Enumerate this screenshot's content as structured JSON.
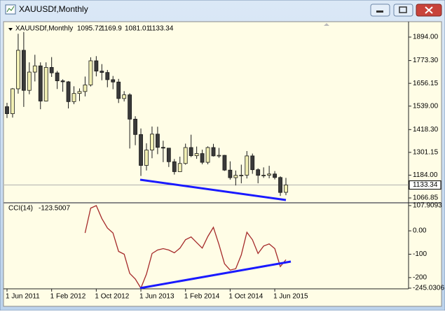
{
  "window": {
    "title": "XAUUSDf,Monthly"
  },
  "chart_data": [
    {
      "type": "candlestick",
      "title": "XAUUSDf,Monthly",
      "categories": [
        "1 Jun 2011",
        null,
        null,
        null,
        null,
        null,
        null,
        null,
        "1 Feb 2012",
        null,
        null,
        null,
        null,
        null,
        null,
        null,
        "1 Oct 2012",
        null,
        null,
        null,
        null,
        null,
        null,
        null,
        "1 Jun 2013",
        null,
        null,
        null,
        null,
        null,
        null,
        null,
        "1 Feb 2014",
        null,
        null,
        null,
        null,
        null,
        null,
        null,
        "1 Oct 2014",
        null,
        null,
        null,
        null,
        null,
        null,
        null,
        "1 Jun 2015",
        null,
        null
      ],
      "open": [
        1536,
        1500,
        1628,
        1826,
        1620,
        1714,
        1746,
        1565,
        1738,
        1710,
        1669,
        1664,
        1562,
        1604,
        1614,
        1648,
        1772,
        1719,
        1712,
        1675,
        1663,
        1578,
        1597,
        1472,
        1393,
        1234,
        1313,
        1395,
        1327,
        1323,
        1253,
        1202,
        1244,
        1326,
        1284,
        1295,
        1250,
        1326,
        1283,
        1286,
        1210,
        1171,
        1183,
        1184,
        1283,
        1212,
        1183,
        1184,
        1190,
        1172,
        1095.72
      ],
      "high": [
        1556,
        1632,
        1911,
        1920,
        1764,
        1803,
        1764,
        1764,
        1791,
        1720,
        1677,
        1668,
        1641,
        1630,
        1691,
        1790,
        1796,
        1755,
        1725,
        1694,
        1679,
        1616,
        1605,
        1487,
        1424,
        1348,
        1434,
        1433,
        1361,
        1321,
        1267,
        1279,
        1346,
        1392,
        1331,
        1315,
        1332,
        1345,
        1324,
        1288,
        1255,
        1208,
        1238,
        1308,
        1295,
        1219,
        1224,
        1232,
        1205,
        1178,
        1169.9
      ],
      "low": [
        1478,
        1480,
        1603,
        1535,
        1600,
        1666,
        1523,
        1563,
        1689,
        1627,
        1613,
        1527,
        1549,
        1565,
        1589,
        1640,
        1692,
        1672,
        1636,
        1626,
        1555,
        1563,
        1321,
        1338,
        1180,
        1208,
        1271,
        1292,
        1251,
        1226,
        1187,
        1202,
        1238,
        1277,
        1268,
        1240,
        1240,
        1280,
        1273,
        1206,
        1161,
        1131,
        1142,
        1167,
        1191,
        1142,
        1170,
        1168,
        1162,
        1077,
        1081.01
      ],
      "close": [
        1500,
        1628,
        1826,
        1620,
        1714,
        1746,
        1565,
        1738,
        1710,
        1669,
        1664,
        1562,
        1604,
        1614,
        1648,
        1772,
        1719,
        1712,
        1675,
        1663,
        1578,
        1597,
        1472,
        1393,
        1234,
        1313,
        1395,
        1327,
        1323,
        1253,
        1202,
        1244,
        1326,
        1284,
        1295,
        1250,
        1326,
        1283,
        1286,
        1210,
        1171,
        1183,
        1184,
        1283,
        1212,
        1183,
        1184,
        1190,
        1172,
        1095,
        1133.34
      ],
      "up_color": "#f2f0b4",
      "down_color": "#3a3a3a",
      "outline_color": "#1a1a1a",
      "ylim": [
        1049,
        1948
      ],
      "yticks": [
        {
          "value": 1894,
          "label": "1894.00"
        },
        {
          "value": 1773.3,
          "label": "1773.30"
        },
        1656.15,
        {
          "value": 1539,
          "label": "1539.00"
        },
        {
          "value": 1418.3,
          "label": "1418.30"
        },
        1301.15,
        {
          "value": 1184,
          "label": "1184.00"
        },
        1066.85
      ]
    },
    {
      "type": "line",
      "title": "CCI(14)",
      "series": [
        {
          "name": "CCI(14)",
          "color": "#a52a2a",
          "values": [
            null,
            null,
            null,
            null,
            null,
            null,
            null,
            null,
            null,
            null,
            null,
            null,
            null,
            null,
            -9,
            97,
            107.9093,
            53,
            12,
            -9,
            -88,
            -100,
            -182,
            -206,
            -245.0306,
            -185,
            -97,
            -82,
            -76,
            -82,
            -94,
            -74,
            -38,
            -26,
            -50,
            -74,
            -24,
            15,
            -59,
            -141,
            -168,
            -162,
            -103,
            -6,
            -38,
            -97,
            -65,
            -56,
            -76,
            -153,
            -123.5007
          ]
        }
      ],
      "ylim": [
        -245.0306,
        107.9093
      ],
      "yticks": [
        107.9093,
        {
          "value": 0,
          "label": "0.00"
        },
        -100,
        -200,
        -245.0306
      ]
    }
  ]
}
